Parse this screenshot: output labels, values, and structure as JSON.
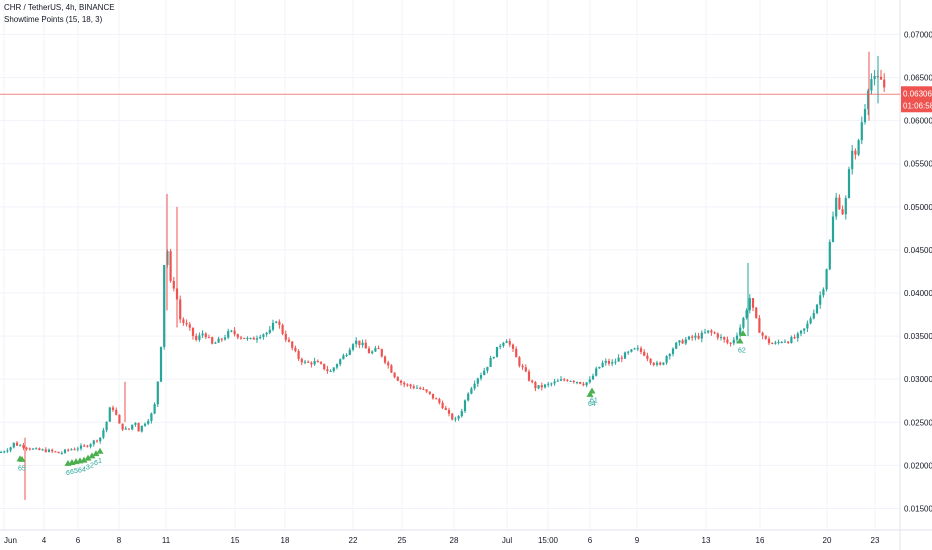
{
  "legend": {
    "symbol_line": "CHR / TetherUS, 4h, BINANCE",
    "indicator_line": "Showtime Points (15, 18, 3)"
  },
  "price_tag": {
    "price": "0.06306",
    "countdown": "01:06:58",
    "color": "#ef5350"
  },
  "colors": {
    "up": "#26a69a",
    "down": "#ef5350",
    "grid": "#f0f3fa",
    "signal": "#4caf50"
  },
  "chart_data": {
    "type": "candlestick",
    "title": "CHR / TetherUS, 4h, BINANCE",
    "ylim": [
      0.0125,
      0.074
    ],
    "y_ticks": [
      "0.01500",
      "0.02000",
      "0.02500",
      "0.03000",
      "0.03500",
      "0.04000",
      "0.04500",
      "0.05000",
      "0.05500",
      "0.06000",
      "0.06500",
      "0.07000"
    ],
    "x_ticks": [
      "Jun",
      "4",
      "6",
      "8",
      "11",
      "15",
      "18",
      "22",
      "25",
      "28",
      "Jul",
      "15:00",
      "6",
      "9",
      "13",
      "16",
      "20",
      "23"
    ],
    "grid": true,
    "price_path": [
      [
        0,
        0.0215
      ],
      [
        6,
        0.0218
      ],
      [
        10,
        0.0221
      ],
      [
        12,
        0.0222
      ],
      [
        14,
        0.0226
      ],
      [
        17,
        0.0224
      ],
      [
        24,
        0.0222
      ],
      [
        35,
        0.0218
      ],
      [
        48,
        0.0217
      ],
      [
        60,
        0.0214
      ],
      [
        68,
        0.0218
      ],
      [
        76,
        0.022
      ],
      [
        85,
        0.0222
      ],
      [
        94,
        0.0228
      ],
      [
        100,
        0.0232
      ],
      [
        103,
        0.024
      ],
      [
        106,
        0.0248
      ],
      [
        109,
        0.0262
      ],
      [
        111,
        0.027
      ],
      [
        115,
        0.0262
      ],
      [
        120,
        0.0245
      ],
      [
        128,
        0.024
      ],
      [
        135,
        0.0252
      ],
      [
        138,
        0.024
      ],
      [
        145,
        0.025
      ],
      [
        150,
        0.0256
      ],
      [
        154,
        0.0265
      ],
      [
        157,
        0.029
      ],
      [
        160,
        0.032
      ],
      [
        162,
        0.036
      ],
      [
        164,
        0.043
      ],
      [
        166,
        0.047
      ],
      [
        168,
        0.044
      ],
      [
        170,
        0.042
      ],
      [
        172,
        0.039
      ],
      [
        174,
        0.041
      ],
      [
        176,
        0.04
      ],
      [
        180,
        0.037
      ],
      [
        188,
        0.036
      ],
      [
        196,
        0.0345
      ],
      [
        204,
        0.0355
      ],
      [
        212,
        0.034
      ],
      [
        220,
        0.0345
      ],
      [
        230,
        0.0355
      ],
      [
        240,
        0.035
      ],
      [
        250,
        0.0345
      ],
      [
        260,
        0.0352
      ],
      [
        270,
        0.0355
      ],
      [
        276,
        0.037
      ],
      [
        282,
        0.0355
      ],
      [
        290,
        0.034
      ],
      [
        298,
        0.0325
      ],
      [
        306,
        0.0318
      ],
      [
        314,
        0.032
      ],
      [
        322,
        0.0315
      ],
      [
        330,
        0.0308
      ],
      [
        338,
        0.032
      ],
      [
        346,
        0.033
      ],
      [
        354,
        0.0345
      ],
      [
        362,
        0.034
      ],
      [
        370,
        0.033
      ],
      [
        378,
        0.0335
      ],
      [
        386,
        0.032
      ],
      [
        394,
        0.0305
      ],
      [
        402,
        0.0295
      ],
      [
        410,
        0.0292
      ],
      [
        418,
        0.029
      ],
      [
        426,
        0.0285
      ],
      [
        434,
        0.0278
      ],
      [
        442,
        0.027
      ],
      [
        450,
        0.0256
      ],
      [
        456,
        0.0252
      ],
      [
        462,
        0.0265
      ],
      [
        468,
        0.0285
      ],
      [
        476,
        0.03
      ],
      [
        484,
        0.031
      ],
      [
        492,
        0.0325
      ],
      [
        500,
        0.034
      ],
      [
        506,
        0.0348
      ],
      [
        512,
        0.0335
      ],
      [
        518,
        0.032
      ],
      [
        524,
        0.031
      ],
      [
        530,
        0.0298
      ],
      [
        536,
        0.029
      ],
      [
        544,
        0.0292
      ],
      [
        552,
        0.0295
      ],
      [
        560,
        0.0298
      ],
      [
        568,
        0.03
      ],
      [
        576,
        0.0298
      ],
      [
        584,
        0.0295
      ],
      [
        590,
        0.0298
      ],
      [
        596,
        0.031
      ],
      [
        604,
        0.032
      ],
      [
        612,
        0.0318
      ],
      [
        620,
        0.0325
      ],
      [
        628,
        0.033
      ],
      [
        636,
        0.0335
      ],
      [
        644,
        0.033
      ],
      [
        652,
        0.032
      ],
      [
        660,
        0.0315
      ],
      [
        668,
        0.033
      ],
      [
        676,
        0.034
      ],
      [
        684,
        0.0345
      ],
      [
        692,
        0.0348
      ],
      [
        700,
        0.035
      ],
      [
        708,
        0.0355
      ],
      [
        716,
        0.0352
      ],
      [
        724,
        0.0345
      ],
      [
        730,
        0.034
      ],
      [
        738,
        0.0355
      ],
      [
        742,
        0.0365
      ],
      [
        746,
        0.038
      ],
      [
        750,
        0.0395
      ],
      [
        754,
        0.0375
      ],
      [
        760,
        0.0355
      ],
      [
        766,
        0.0345
      ],
      [
        774,
        0.034
      ],
      [
        782,
        0.0345
      ],
      [
        790,
        0.0345
      ],
      [
        798,
        0.035
      ],
      [
        806,
        0.036
      ],
      [
        812,
        0.0375
      ],
      [
        818,
        0.039
      ],
      [
        824,
        0.041
      ],
      [
        828,
        0.044
      ],
      [
        832,
        0.048
      ],
      [
        836,
        0.051
      ],
      [
        840,
        0.05
      ],
      [
        844,
        0.049
      ],
      [
        848,
        0.053
      ],
      [
        852,
        0.057
      ],
      [
        856,
        0.0555
      ],
      [
        860,
        0.059
      ],
      [
        864,
        0.061
      ],
      [
        868,
        0.064
      ],
      [
        872,
        0.065
      ],
      [
        876,
        0.0645
      ],
      [
        880,
        0.065
      ],
      [
        884,
        0.064
      ],
      [
        886,
        0.0631
      ]
    ],
    "spikes": [
      {
        "x": 25,
        "hi": 0.0232,
        "lo": 0.016
      },
      {
        "x": 167,
        "hi": 0.0515,
        "lo": 0.038
      },
      {
        "x": 177,
        "hi": 0.05,
        "lo": 0.036
      },
      {
        "x": 125,
        "hi": 0.0297,
        "lo": 0.025
      },
      {
        "x": 748,
        "hi": 0.0435,
        "lo": 0.035
      },
      {
        "x": 869,
        "hi": 0.068,
        "lo": 0.06
      },
      {
        "x": 878,
        "hi": 0.0675,
        "lo": 0.062
      }
    ],
    "signals": [
      {
        "x": 20,
        "label": "65"
      },
      {
        "x": 22,
        "label": ""
      },
      {
        "x": 68,
        "label": "6"
      },
      {
        "x": 72,
        "label": "6"
      },
      {
        "x": 76,
        "label": "5"
      },
      {
        "x": 80,
        "label": "6"
      },
      {
        "x": 84,
        "label": "4"
      },
      {
        "x": 88,
        "label": "3"
      },
      {
        "x": 92,
        "label": "2"
      },
      {
        "x": 96,
        "label": "6"
      },
      {
        "x": 100,
        "label": "1"
      },
      {
        "x": 590,
        "label": "64"
      },
      {
        "x": 592,
        "label": "61"
      },
      {
        "x": 740,
        "label": "62"
      },
      {
        "x": 743,
        "label": ""
      }
    ],
    "current_price": 0.06306
  }
}
